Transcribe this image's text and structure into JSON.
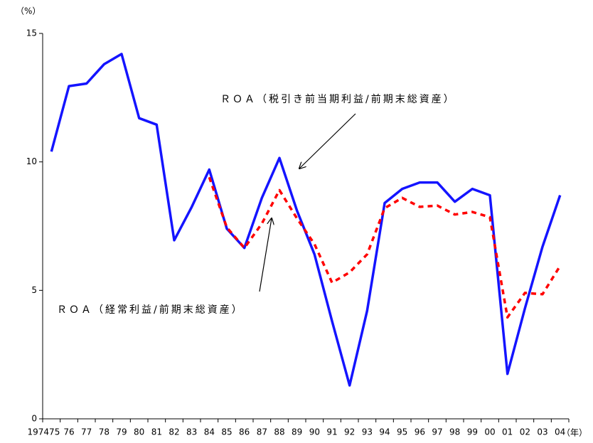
{
  "chart_data": {
    "type": "line",
    "y_label": "（%）",
    "x_label": "（年）",
    "categories": [
      "197475",
      "76",
      "77",
      "78",
      "79",
      "80",
      "81",
      "82",
      "83",
      "84",
      "85",
      "86",
      "87",
      "88",
      "89",
      "90",
      "91",
      "92",
      "93",
      "94",
      "95",
      "96",
      "97",
      "98",
      "99",
      "00",
      "01",
      "02",
      "03",
      "04"
    ],
    "series": [
      {
        "name": "ＲＯＡ（税引き前当期利益/前期末総資産）",
        "color": "#1414ff",
        "dash": false,
        "values": [
          10.4,
          12.95,
          13.05,
          13.8,
          14.2,
          11.7,
          11.45,
          6.95,
          8.25,
          9.7,
          7.4,
          6.65,
          8.6,
          10.15,
          8.1,
          6.4,
          3.8,
          1.3,
          4.2,
          8.4,
          8.95,
          9.2,
          9.2,
          8.45,
          8.95,
          8.7,
          1.75,
          4.3,
          6.7,
          8.7
        ]
      },
      {
        "name": "ＲＯＡ（経常利益/前期末総資産）",
        "color": "#ff0000",
        "dash": true,
        "values": [
          null,
          null,
          null,
          null,
          null,
          null,
          null,
          null,
          null,
          9.4,
          7.45,
          6.65,
          7.6,
          8.9,
          7.8,
          6.8,
          5.3,
          5.7,
          6.4,
          8.2,
          8.6,
          8.25,
          8.3,
          7.95,
          8.05,
          7.85,
          3.95,
          4.9,
          4.85,
          5.95
        ]
      }
    ],
    "ylim": [
      0,
      15
    ],
    "yticks": [
      0,
      5,
      10,
      15
    ]
  }
}
